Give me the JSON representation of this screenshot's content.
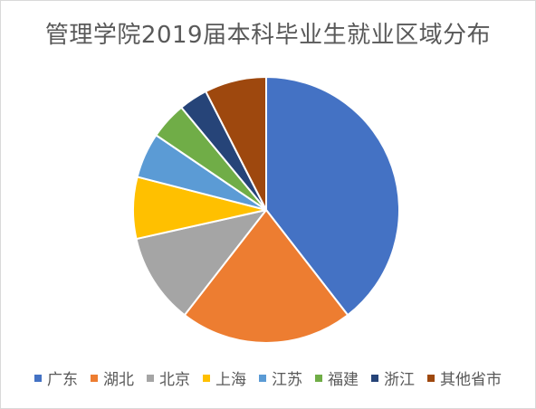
{
  "chart_data": {
    "type": "pie",
    "title": "管理学院2019届本科毕业生就业区域分布",
    "legend_position": "bottom",
    "slices": [
      {
        "label": "广东",
        "value": 39.5,
        "color": "#4472C4"
      },
      {
        "label": "湖北",
        "value": 21.0,
        "color": "#ED7D31"
      },
      {
        "label": "北京",
        "value": 11.0,
        "color": "#A5A5A5"
      },
      {
        "label": "上海",
        "value": 7.5,
        "color": "#FFC000"
      },
      {
        "label": "江苏",
        "value": 5.5,
        "color": "#5B9BD5"
      },
      {
        "label": "福建",
        "value": 4.5,
        "color": "#70AD47"
      },
      {
        "label": "浙江",
        "value": 3.5,
        "color": "#264478"
      },
      {
        "label": "其他省市",
        "value": 7.5,
        "color": "#9E480E"
      }
    ]
  }
}
